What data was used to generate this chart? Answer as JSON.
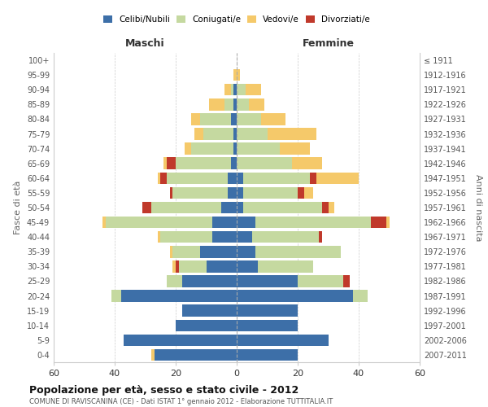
{
  "age_groups": [
    "0-4",
    "5-9",
    "10-14",
    "15-19",
    "20-24",
    "25-29",
    "30-34",
    "35-39",
    "40-44",
    "45-49",
    "50-54",
    "55-59",
    "60-64",
    "65-69",
    "70-74",
    "75-79",
    "80-84",
    "85-89",
    "90-94",
    "95-99",
    "100+"
  ],
  "birth_years": [
    "2007-2011",
    "2002-2006",
    "1997-2001",
    "1992-1996",
    "1987-1991",
    "1982-1986",
    "1977-1981",
    "1972-1976",
    "1967-1971",
    "1962-1966",
    "1957-1961",
    "1952-1956",
    "1947-1951",
    "1942-1946",
    "1937-1941",
    "1932-1936",
    "1927-1931",
    "1922-1926",
    "1917-1921",
    "1912-1916",
    "≤ 1911"
  ],
  "colors": {
    "celibi": "#3d6fa8",
    "coniugati": "#c5d9a0",
    "vedovi": "#f5c96a",
    "divorziati": "#c0392b"
  },
  "maschi": {
    "celibi": [
      27,
      37,
      20,
      18,
      38,
      18,
      10,
      12,
      8,
      8,
      5,
      3,
      3,
      2,
      1,
      1,
      2,
      1,
      1,
      0,
      0
    ],
    "coniugati": [
      0,
      0,
      0,
      0,
      3,
      5,
      9,
      9,
      17,
      35,
      23,
      18,
      20,
      18,
      14,
      10,
      10,
      3,
      1,
      0,
      0
    ],
    "vedovi": [
      1,
      0,
      0,
      0,
      0,
      0,
      1,
      1,
      1,
      1,
      0,
      0,
      1,
      1,
      2,
      3,
      3,
      5,
      2,
      1,
      0
    ],
    "divorziati": [
      0,
      0,
      0,
      0,
      0,
      0,
      1,
      0,
      0,
      0,
      3,
      1,
      2,
      3,
      0,
      0,
      0,
      0,
      0,
      0,
      0
    ]
  },
  "femmine": {
    "celibi": [
      20,
      30,
      20,
      20,
      38,
      20,
      7,
      6,
      5,
      6,
      2,
      2,
      2,
      0,
      0,
      0,
      0,
      0,
      0,
      0,
      0
    ],
    "coniugati": [
      0,
      0,
      0,
      0,
      5,
      15,
      18,
      28,
      22,
      38,
      26,
      18,
      22,
      18,
      14,
      10,
      8,
      4,
      3,
      0,
      0
    ],
    "vedovi": [
      0,
      0,
      0,
      0,
      0,
      0,
      0,
      0,
      0,
      1,
      2,
      3,
      14,
      10,
      10,
      16,
      8,
      5,
      5,
      1,
      0
    ],
    "divorziati": [
      0,
      0,
      0,
      0,
      0,
      2,
      0,
      0,
      1,
      5,
      2,
      2,
      2,
      0,
      0,
      0,
      0,
      0,
      0,
      0,
      0
    ]
  },
  "xlim": 60,
  "xtick_step": 20,
  "title": "Popolazione per età, sesso e stato civile - 2012",
  "subtitle": "COMUNE DI RAVISCANINA (CE) - Dati ISTAT 1° gennaio 2012 - Elaborazione TUTTITALIA.IT",
  "ylabel_left": "Fasce di età",
  "ylabel_right": "Anni di nascita",
  "header_left": "Maschi",
  "header_right": "Femmine",
  "legend_labels": [
    "Celibi/Nubili",
    "Coniugati/e",
    "Vedovi/e",
    "Divorziati/e"
  ],
  "bg_color": "#ffffff",
  "bar_height": 0.8
}
